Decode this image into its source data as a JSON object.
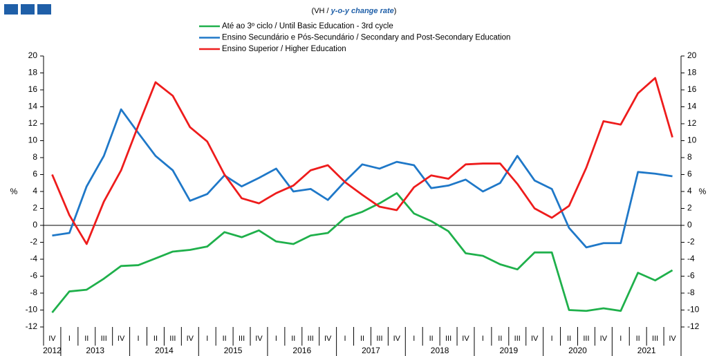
{
  "chart_data": {
    "type": "line",
    "subtitle_prefix": "(VH /",
    "subtitle_emphasis": "y-o-y change rate",
    "subtitle_suffix": ")",
    "y_label": "%",
    "y2_label": "%",
    "categories": [
      "IV",
      "I",
      "II",
      "III",
      "IV",
      "I",
      "II",
      "III",
      "IV",
      "I",
      "II",
      "III",
      "IV",
      "I",
      "II",
      "III",
      "IV",
      "I",
      "II",
      "III",
      "IV",
      "I",
      "II",
      "III",
      "IV",
      "I",
      "II",
      "III",
      "IV",
      "I",
      "II",
      "III",
      "IV",
      "I",
      "II",
      "III",
      "IV"
    ],
    "years": [
      "2012",
      "2013",
      "2014",
      "2015",
      "2016",
      "2017",
      "2018",
      "2019",
      "2020",
      "2021"
    ],
    "series": [
      {
        "name": "Até ao 3º ciclo / Until Basic Education - 3rd cycle",
        "color": "#1fb04b",
        "values": [
          -10.3,
          -7.8,
          -7.6,
          -6.3,
          -4.8,
          -4.7,
          -3.9,
          -3.1,
          -2.9,
          -2.5,
          -0.8,
          -1.4,
          -0.6,
          -1.9,
          -2.2,
          -1.2,
          -0.9,
          0.9,
          1.6,
          2.6,
          3.8,
          1.4,
          0.5,
          -0.7,
          -3.3,
          -3.6,
          -4.6,
          -5.2,
          -3.2,
          -3.2,
          -10.0,
          -10.1,
          -9.8,
          -10.1,
          -5.6,
          -6.5,
          -5.3
        ]
      },
      {
        "name": "Ensino Secundário e Pós-Secundário / Secondary and Post-Secondary Education",
        "color": "#1f78c8",
        "values": [
          -1.2,
          -0.9,
          4.6,
          8.2,
          13.7,
          10.9,
          8.2,
          6.5,
          2.9,
          3.7,
          5.9,
          4.6,
          5.6,
          6.7,
          4.0,
          4.3,
          3.0,
          5.2,
          7.2,
          6.7,
          7.5,
          7.1,
          4.4,
          4.7,
          5.4,
          4.0,
          5.0,
          8.2,
          5.3,
          4.3,
          -0.3,
          -2.6,
          -2.1,
          -2.1,
          6.3,
          6.1,
          5.8
        ]
      },
      {
        "name": "Ensino Superior / Higher Education",
        "color": "#ee1c1c",
        "values": [
          6.0,
          1.2,
          -2.2,
          2.8,
          6.5,
          11.8,
          16.9,
          15.3,
          11.6,
          9.9,
          6.0,
          3.2,
          2.6,
          3.8,
          4.7,
          6.5,
          7.1,
          5.1,
          3.6,
          2.2,
          1.8,
          4.5,
          5.9,
          5.5,
          7.2,
          7.3,
          7.3,
          4.9,
          2.0,
          0.9,
          2.3,
          6.8,
          12.3,
          11.9,
          15.6,
          17.4,
          10.4
        ]
      }
    ],
    "ylim": [
      -12,
      20
    ],
    "yticks": [
      -12,
      -10,
      -8,
      -6,
      -4,
      -2,
      0,
      2,
      4,
      6,
      8,
      10,
      12,
      14,
      16,
      18,
      20
    ],
    "y2lim": [
      -12,
      20
    ],
    "y2ticks": [
      -12,
      -10,
      -8,
      -6,
      -4,
      -2,
      0,
      2,
      4,
      6,
      8,
      10,
      12,
      14,
      16,
      18,
      20
    ]
  }
}
